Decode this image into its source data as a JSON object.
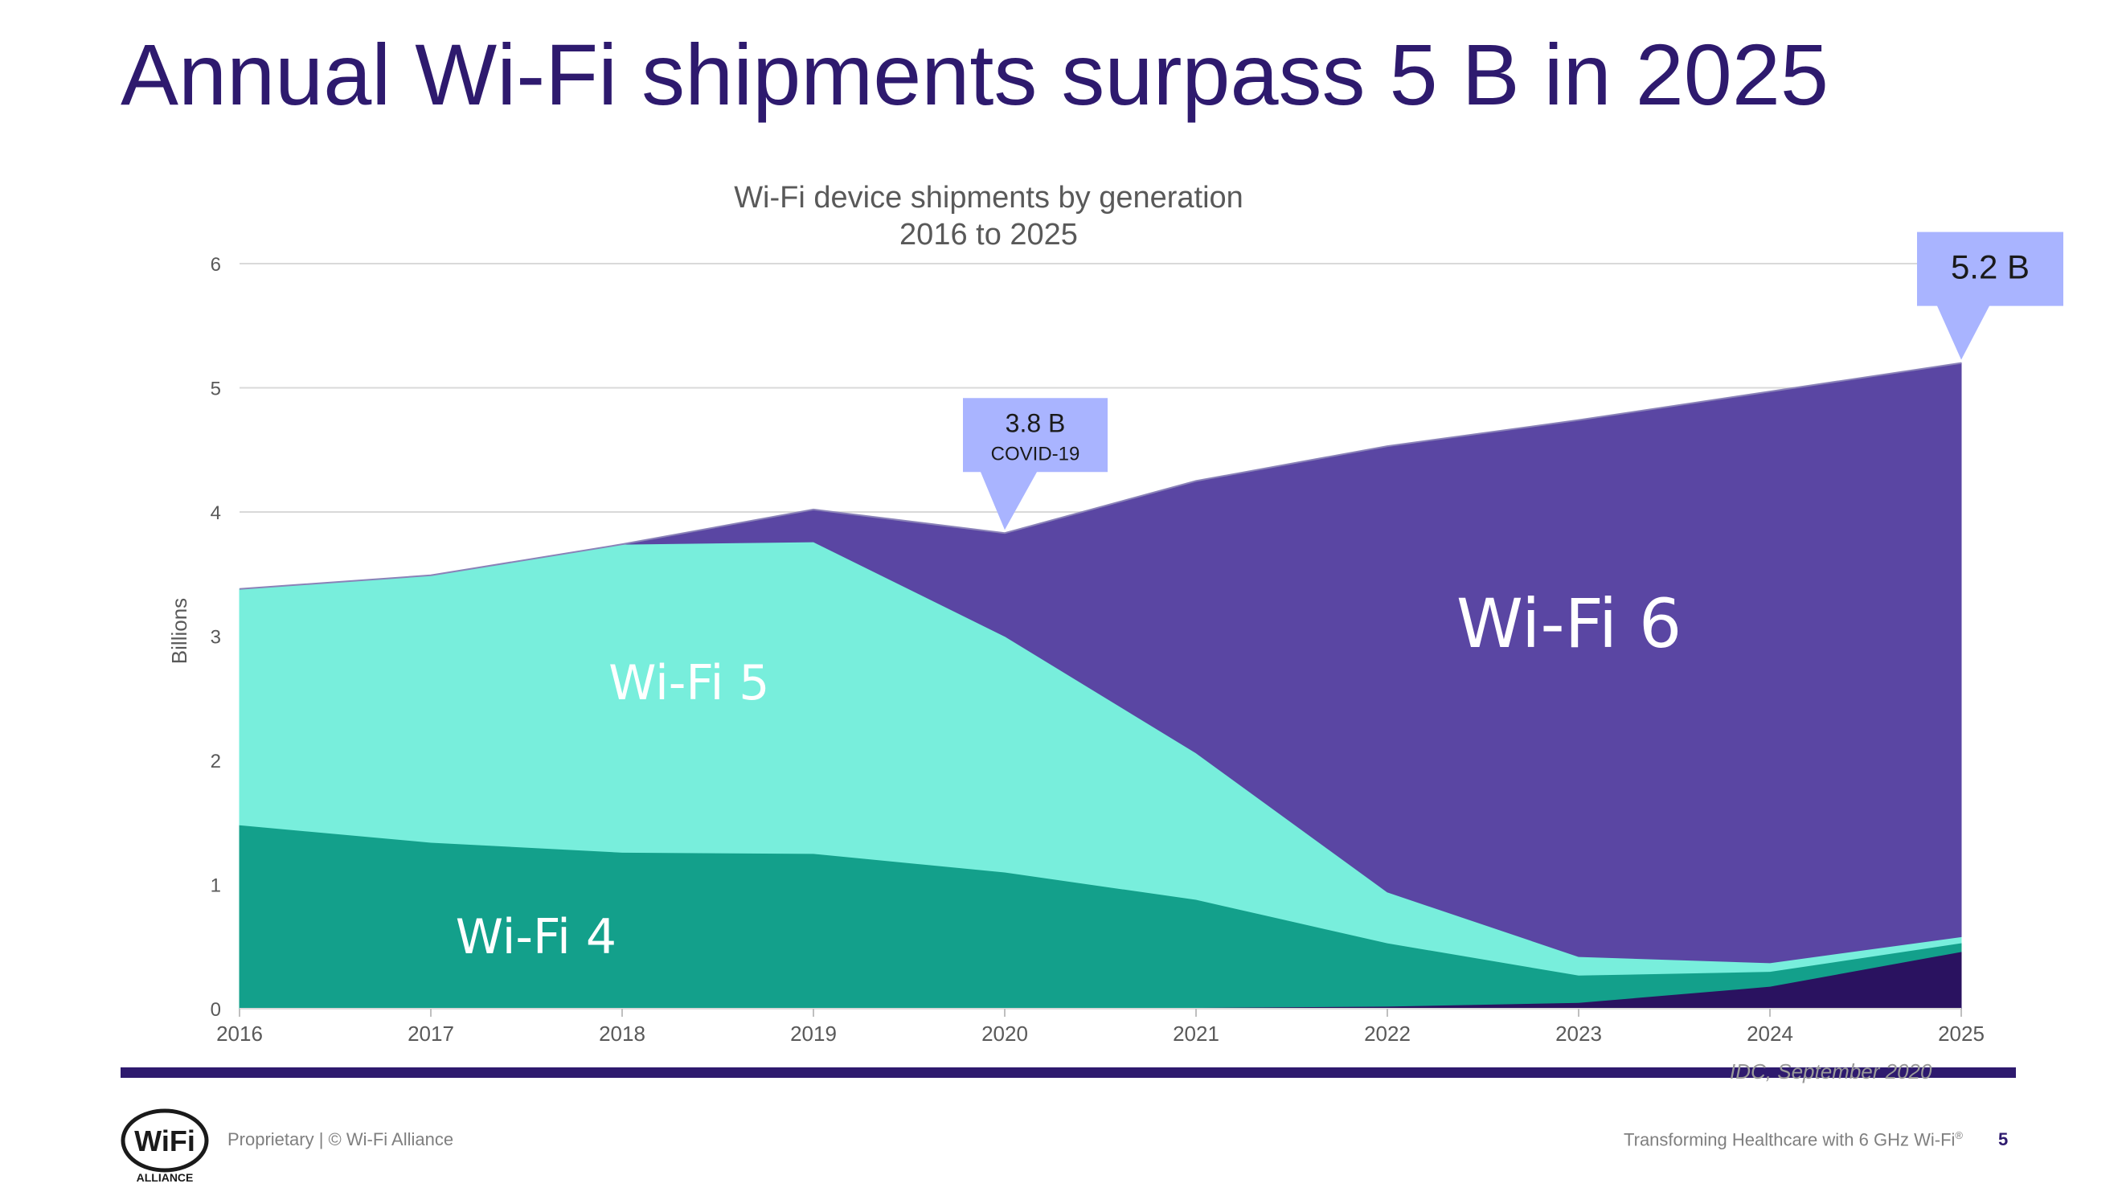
{
  "slide": {
    "title": "Annual Wi-Fi shipments surpass 5 B in 2025",
    "source": "IDC, September 2020",
    "footer_left": "Proprietary | © Wi-Fi Alliance",
    "footer_right": "Transforming Healthcare with 6 GHz Wi-Fi",
    "footer_right_mark": "®",
    "page_number": "5",
    "logo_text": "WiFi",
    "logo_subtext": "ALLIANCE",
    "colors": {
      "title": "#2e1a6e",
      "rule": "#2e1a6e",
      "callout": "#a9b4ff"
    }
  },
  "chart_data": {
    "type": "area",
    "stacked": true,
    "title": "Wi-Fi device shipments by generation",
    "subtitle": "2016 to 2025",
    "xlabel": "",
    "ylabel": "Billions",
    "ylim": [
      0,
      6
    ],
    "yticks": [
      "0",
      "1",
      "2",
      "3",
      "4",
      "5",
      "6"
    ],
    "grid": true,
    "x": [
      "2016",
      "2017",
      "2018",
      "2019",
      "2020",
      "2021",
      "2022",
      "2023",
      "2024",
      "2025"
    ],
    "series": [
      {
        "name": "",
        "color": "#2a1260",
        "values": [
          0,
          0,
          0,
          0,
          0,
          0.01,
          0.02,
          0.05,
          0.18,
          0.46
        ]
      },
      {
        "name": "Wi-Fi 4",
        "color": "#13a08b",
        "values": [
          1.48,
          1.34,
          1.26,
          1.25,
          1.1,
          0.87,
          0.51,
          0.22,
          0.12,
          0.07
        ]
      },
      {
        "name": "Wi-Fi 5",
        "color": "#78eedc",
        "values": [
          1.9,
          2.15,
          2.48,
          2.51,
          1.9,
          1.18,
          0.41,
          0.15,
          0.07,
          0.05
        ]
      },
      {
        "name": "Wi-Fi 6",
        "color": "#5a46a3",
        "values": [
          0,
          0,
          0,
          0.26,
          0.83,
          2.19,
          3.59,
          4.32,
          4.6,
          4.62
        ]
      }
    ],
    "annotations": [
      {
        "x": "2020",
        "y": 3.83,
        "label": "3.8 B",
        "sublabel": "COVID-19"
      },
      {
        "x": "2025",
        "y": 5.2,
        "label": "5.2 B",
        "sublabel": ""
      }
    ]
  }
}
